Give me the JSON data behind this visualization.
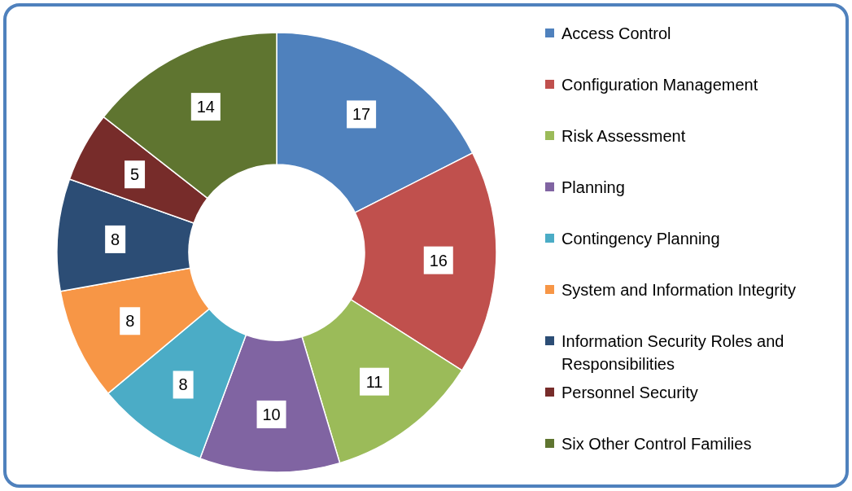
{
  "chart_data": {
    "type": "donut",
    "categories": [
      "Access Control",
      "Configuration Management",
      "Risk Assessment",
      "Planning",
      "Contingency Planning",
      "System and Information Integrity",
      "Information Security Roles and Responsibilities",
      "Personnel Security",
      "Six Other Control Families"
    ],
    "values": [
      17,
      16,
      11,
      10,
      8,
      8,
      8,
      5,
      14
    ],
    "colors": [
      "#4f81bd",
      "#c0504d",
      "#9bbb59",
      "#8064a2",
      "#4bacc6",
      "#f79646",
      "#2c4d75",
      "#772c2a",
      "#5f7530"
    ],
    "data_labels": true,
    "legend": "right"
  }
}
